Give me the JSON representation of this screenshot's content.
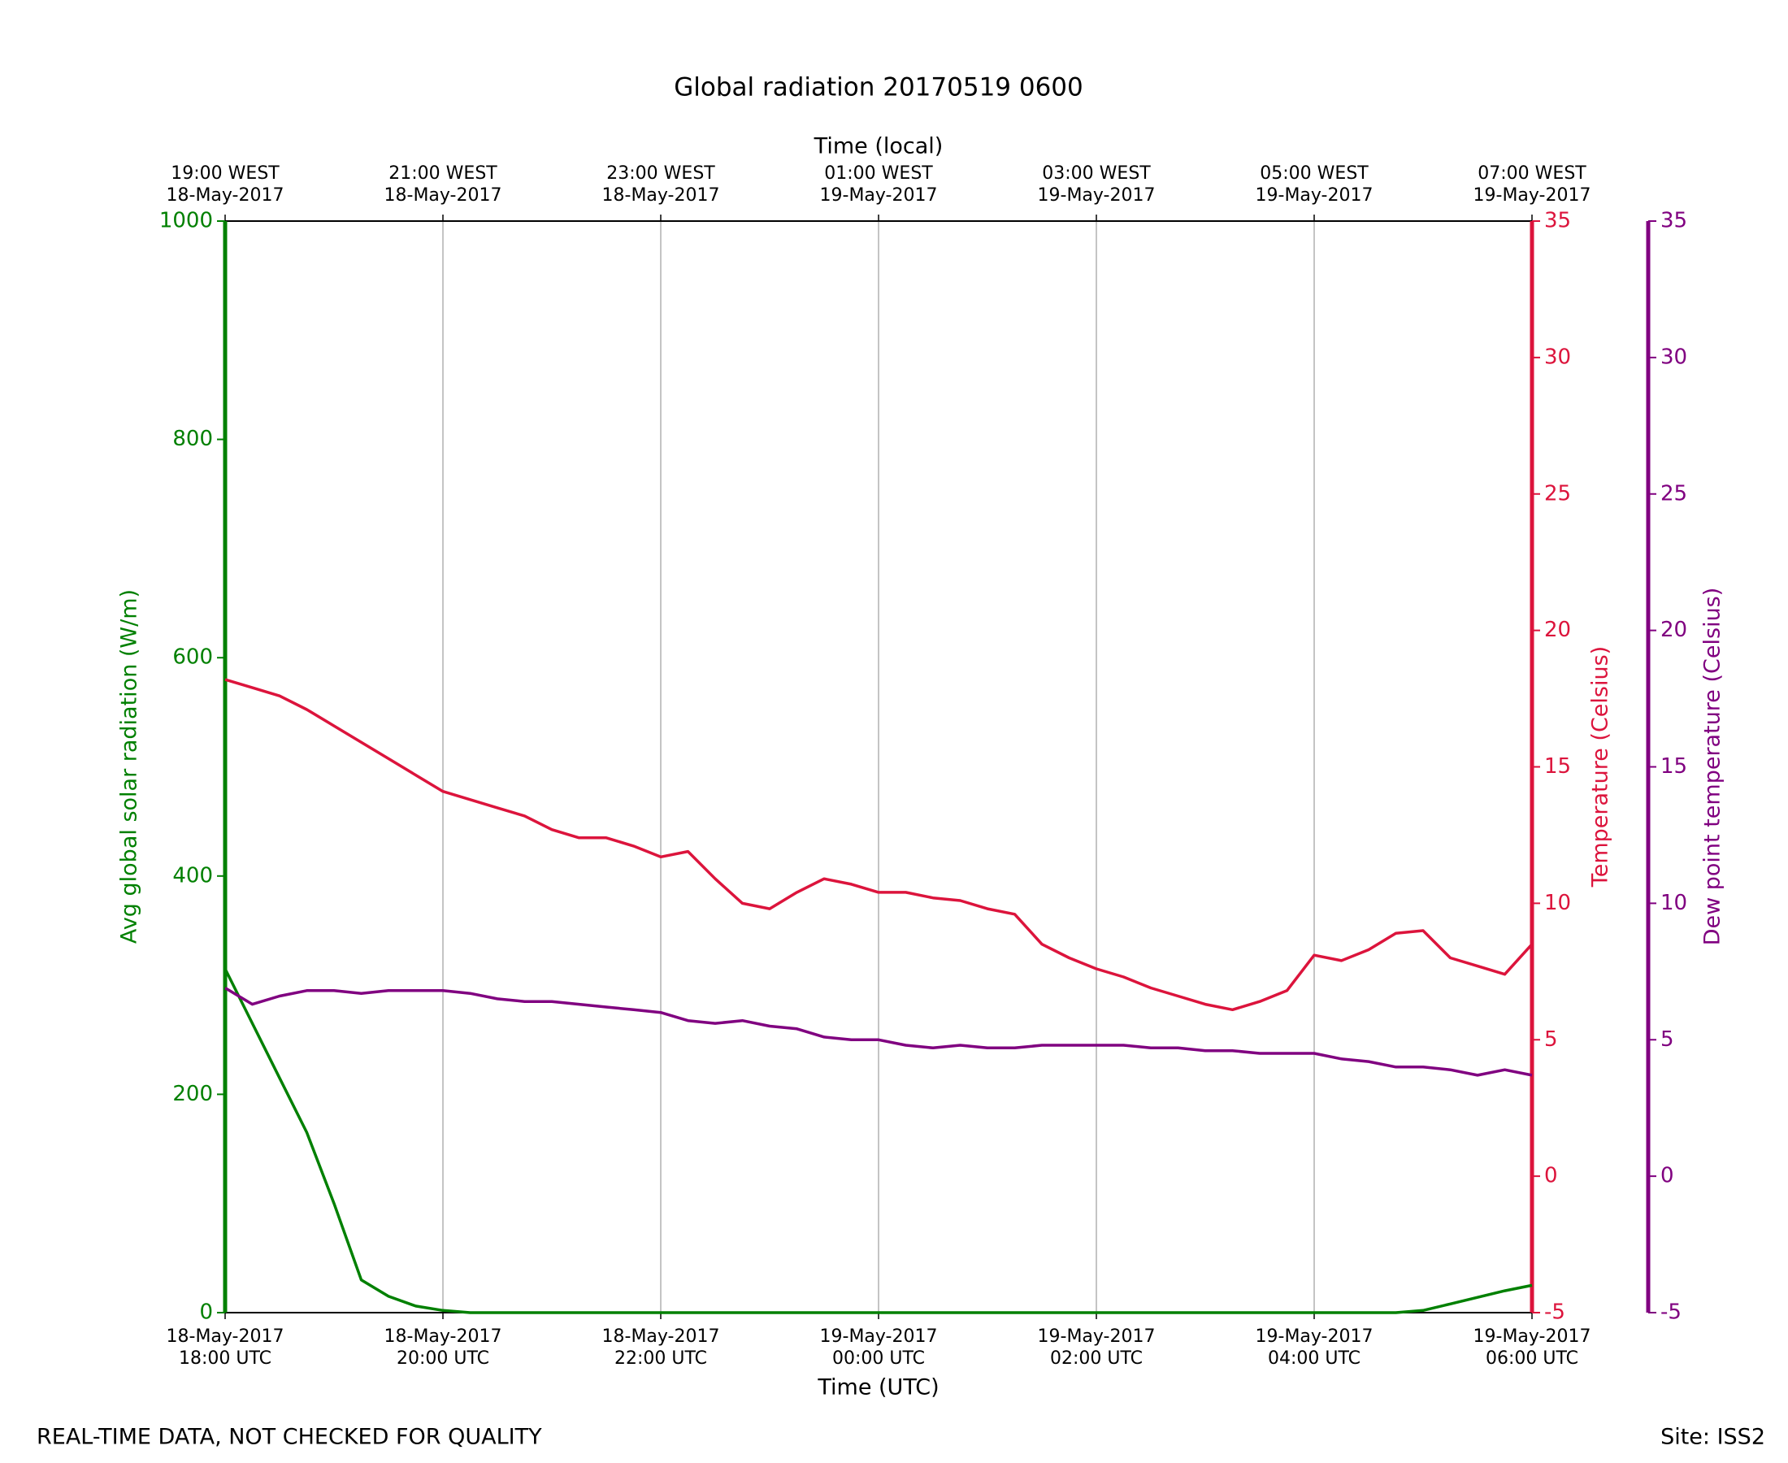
{
  "chart_data": {
    "type": "line",
    "title": "Global radiation 20170519 0600",
    "x_label": "Time (UTC)",
    "top_x_label": "Time (local)",
    "y_label": "Avg global solar radiation (W/m)",
    "y2_label": "Temperature (Celsius)",
    "y3_label": "Dew point temperature (Celsius)",
    "footnote": "REAL-TIME DATA, NOT CHECKED FOR QUALITY",
    "site": "Site: ISS2",
    "grid": true,
    "xlim": [
      "2017-05-18T18:00",
      "2017-05-19T06:00"
    ],
    "xticks": [
      {
        "value": "2017-05-18T18:00",
        "label": [
          "18-May-2017",
          "18:00 UTC"
        ]
      },
      {
        "value": "2017-05-18T20:00",
        "label": [
          "18-May-2017",
          "20:00 UTC"
        ]
      },
      {
        "value": "2017-05-18T22:00",
        "label": [
          "18-May-2017",
          "22:00 UTC"
        ]
      },
      {
        "value": "2017-05-19T00:00",
        "label": [
          "19-May-2017",
          "00:00 UTC"
        ]
      },
      {
        "value": "2017-05-19T02:00",
        "label": [
          "19-May-2017",
          "02:00 UTC"
        ]
      },
      {
        "value": "2017-05-19T04:00",
        "label": [
          "19-May-2017",
          "04:00 UTC"
        ]
      },
      {
        "value": "2017-05-19T06:00",
        "label": [
          "19-May-2017",
          "06:00 UTC"
        ]
      }
    ],
    "top_xticks": [
      {
        "value": "2017-05-18T18:00",
        "label": [
          "19:00 WEST",
          "18-May-2017"
        ]
      },
      {
        "value": "2017-05-18T20:00",
        "label": [
          "21:00 WEST",
          "18-May-2017"
        ]
      },
      {
        "value": "2017-05-18T22:00",
        "label": [
          "23:00 WEST",
          "18-May-2017"
        ]
      },
      {
        "value": "2017-05-19T00:00",
        "label": [
          "01:00 WEST",
          "19-May-2017"
        ]
      },
      {
        "value": "2017-05-19T02:00",
        "label": [
          "03:00 WEST",
          "19-May-2017"
        ]
      },
      {
        "value": "2017-05-19T04:00",
        "label": [
          "05:00 WEST",
          "19-May-2017"
        ]
      },
      {
        "value": "2017-05-19T06:00",
        "label": [
          "07:00 WEST",
          "19-May-2017"
        ]
      }
    ],
    "ylim": [
      0,
      1000
    ],
    "yticks": [
      0,
      200,
      400,
      600,
      800,
      1000
    ],
    "y2lim": [
      -5,
      35
    ],
    "y2ticks": [
      -5,
      0,
      5,
      10,
      15,
      20,
      25,
      30,
      35
    ],
    "y3lim": [
      -5,
      35
    ],
    "y3ticks": [
      -5,
      0,
      5,
      10,
      15,
      20,
      25,
      30,
      35
    ],
    "x": [
      "2017-05-18T18:00",
      "2017-05-18T18:15",
      "2017-05-18T18:30",
      "2017-05-18T18:45",
      "2017-05-18T19:00",
      "2017-05-18T19:15",
      "2017-05-18T19:30",
      "2017-05-18T19:45",
      "2017-05-18T20:00",
      "2017-05-18T20:15",
      "2017-05-18T20:30",
      "2017-05-18T20:45",
      "2017-05-18T21:00",
      "2017-05-18T21:15",
      "2017-05-18T21:30",
      "2017-05-18T21:45",
      "2017-05-18T22:00",
      "2017-05-18T22:15",
      "2017-05-18T22:30",
      "2017-05-18T22:45",
      "2017-05-18T23:00",
      "2017-05-18T23:15",
      "2017-05-18T23:30",
      "2017-05-18T23:45",
      "2017-05-19T00:00",
      "2017-05-19T00:15",
      "2017-05-19T00:30",
      "2017-05-19T00:45",
      "2017-05-19T01:00",
      "2017-05-19T01:15",
      "2017-05-19T01:30",
      "2017-05-19T01:45",
      "2017-05-19T02:00",
      "2017-05-19T02:15",
      "2017-05-19T02:30",
      "2017-05-19T02:45",
      "2017-05-19T03:00",
      "2017-05-19T03:15",
      "2017-05-19T03:30",
      "2017-05-19T03:45",
      "2017-05-19T04:00",
      "2017-05-19T04:15",
      "2017-05-19T04:30",
      "2017-05-19T04:45",
      "2017-05-19T05:00",
      "2017-05-19T05:15",
      "2017-05-19T05:30",
      "2017-05-19T05:45",
      "2017-05-19T06:00"
    ],
    "series": [
      {
        "name": "Avg global solar radiation",
        "color": "#008000",
        "axis": "y",
        "values": [
          315,
          265,
          215,
          165,
          100,
          30,
          15,
          6,
          2,
          0,
          0,
          0,
          0,
          0,
          0,
          0,
          0,
          0,
          0,
          0,
          0,
          0,
          0,
          0,
          0,
          0,
          0,
          0,
          0,
          0,
          0,
          0,
          0,
          0,
          0,
          0,
          0,
          0,
          0,
          0,
          0,
          0,
          0,
          0,
          2,
          8,
          14,
          20,
          25
        ]
      },
      {
        "name": "Temperature",
        "color": "#dc143c",
        "axis": "y2",
        "values": [
          18.2,
          17.9,
          17.6,
          17.1,
          16.5,
          15.9,
          15.3,
          14.7,
          14.1,
          13.8,
          13.5,
          13.2,
          12.7,
          12.4,
          12.4,
          12.1,
          11.7,
          11.9,
          10.9,
          10.0,
          9.8,
          10.4,
          10.9,
          10.7,
          10.4,
          10.4,
          10.2,
          10.1,
          9.8,
          9.6,
          8.5,
          8.0,
          7.6,
          7.3,
          6.9,
          6.6,
          6.3,
          6.1,
          6.4,
          6.8,
          8.1,
          7.9,
          8.3,
          8.9,
          9.0,
          8.0,
          7.7,
          7.4,
          8.5
        ]
      },
      {
        "name": "Dew point temperature",
        "color": "#800080",
        "axis": "y3",
        "values": [
          6.9,
          6.3,
          6.6,
          6.8,
          6.8,
          6.7,
          6.8,
          6.8,
          6.8,
          6.7,
          6.5,
          6.4,
          6.4,
          6.3,
          6.2,
          6.1,
          6.0,
          5.7,
          5.6,
          5.7,
          5.5,
          5.4,
          5.1,
          5.0,
          5.0,
          4.8,
          4.7,
          4.8,
          4.7,
          4.7,
          4.8,
          4.8,
          4.8,
          4.8,
          4.7,
          4.7,
          4.6,
          4.6,
          4.5,
          4.5,
          4.5,
          4.3,
          4.2,
          4.0,
          4.0,
          3.9,
          3.7,
          3.9,
          3.7
        ]
      }
    ]
  }
}
